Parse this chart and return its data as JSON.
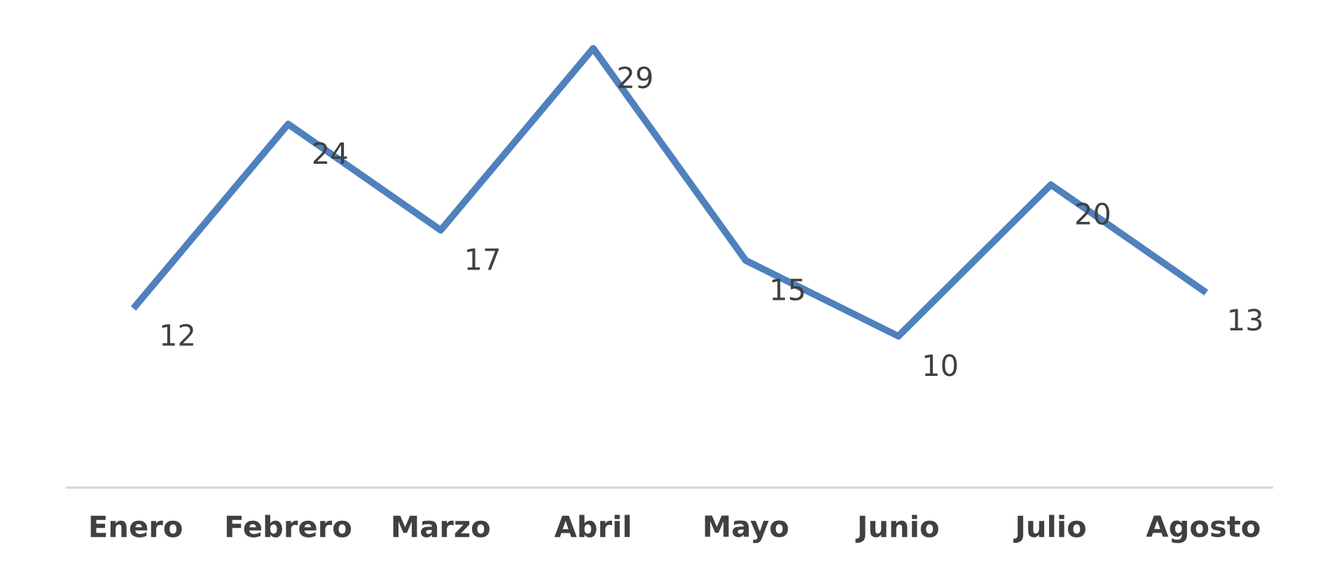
{
  "chart_data": {
    "type": "line",
    "categories": [
      "Enero",
      "Febrero",
      "Marzo",
      "Abril",
      "Mayo",
      "Junio",
      "Julio",
      "Agosto"
    ],
    "series": [
      {
        "color": "#4f81bd",
        "values": [
          12,
          24,
          17,
          29,
          15,
          10,
          20,
          13
        ]
      }
    ],
    "data_labels": true,
    "marker": "none",
    "line_style": "solid"
  }
}
